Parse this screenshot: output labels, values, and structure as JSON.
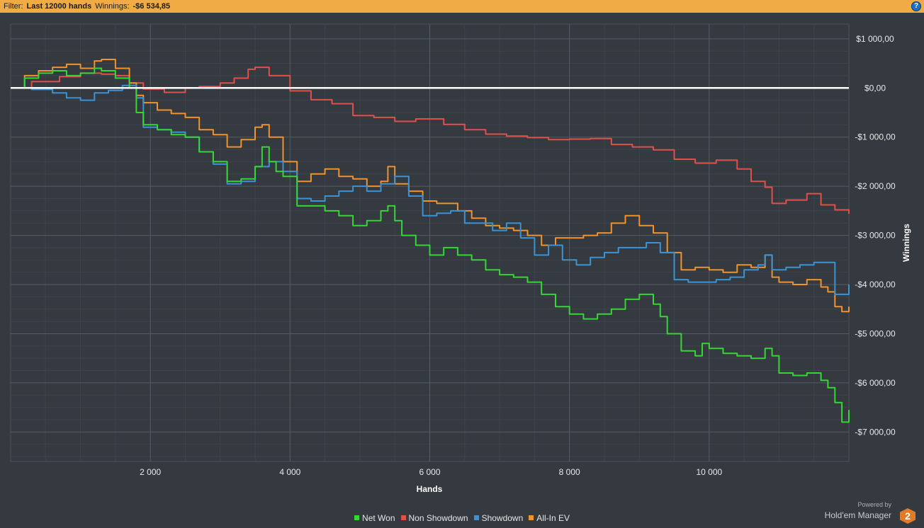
{
  "filter_bar": {
    "prefix": "Filter:",
    "filter_value": "Last 12000 hands",
    "winnings_label": "Winnings:",
    "winnings_value": "-$6 534,85",
    "help_glyph": "?"
  },
  "colors": {
    "background": "#343a40",
    "filter_bar": "#f0ab45",
    "zero_line": "#ffffff",
    "net_won": "#35d635",
    "non_showdown": "#e0504a",
    "showdown": "#3b93d6",
    "all_in_ev": "#f0922e"
  },
  "chart_data": {
    "type": "line",
    "xlabel": "Hands",
    "ylabel": "Winnings",
    "xlim": [
      0,
      12000
    ],
    "ylim": [
      -7600,
      1300
    ],
    "x_ticks": [
      2000,
      4000,
      6000,
      8000,
      10000
    ],
    "x_tick_labels": [
      "2 000",
      "4 000",
      "6 000",
      "8 000",
      "10 000"
    ],
    "y_ticks": [
      1000,
      0,
      -1000,
      -2000,
      -3000,
      -4000,
      -5000,
      -6000,
      -7000
    ],
    "y_tick_labels": [
      "$1 000,00",
      "$0,00",
      "-$1 000,00",
      "-$2 000,00",
      "-$3 000,00",
      "-$4 000,00",
      "-$5 000,00",
      "-$6 000,00",
      "-$7 000,00"
    ],
    "grid": true,
    "legend_position": "bottom-center",
    "series": [
      {
        "name": "Non Showdown",
        "color": "#e0504a",
        "x": [
          0,
          300,
          700,
          1000,
          1300,
          1500,
          1700,
          1900,
          2200,
          2500,
          2700,
          3000,
          3200,
          3400,
          3500,
          3700,
          4000,
          4300,
          4600,
          4900,
          5200,
          5500,
          5800,
          6200,
          6500,
          6800,
          7100,
          7400,
          7700,
          8000,
          8300,
          8600,
          8900,
          9200,
          9500,
          9800,
          10100,
          10400,
          10600,
          10800,
          10900,
          11100,
          11400,
          11600,
          11800,
          12000
        ],
        "values": [
          0,
          130,
          230,
          300,
          280,
          250,
          100,
          -20,
          -90,
          0,
          30,
          100,
          200,
          380,
          420,
          250,
          -60,
          -240,
          -320,
          -560,
          -600,
          -680,
          -630,
          -740,
          -850,
          -940,
          -980,
          -1010,
          -1050,
          -1040,
          -1030,
          -1150,
          -1200,
          -1260,
          -1450,
          -1530,
          -1470,
          -1650,
          -1900,
          -2020,
          -2350,
          -2280,
          -2150,
          -2380,
          -2480,
          -2560
        ]
      },
      {
        "name": "All-In EV",
        "color": "#f0922e",
        "x": [
          0,
          200,
          400,
          600,
          800,
          1000,
          1200,
          1300,
          1500,
          1700,
          1800,
          1900,
          2100,
          2300,
          2500,
          2700,
          2900,
          3100,
          3300,
          3500,
          3600,
          3700,
          3900,
          4100,
          4300,
          4500,
          4700,
          4900,
          5100,
          5300,
          5400,
          5500,
          5700,
          5900,
          6100,
          6400,
          6600,
          6800,
          7000,
          7200,
          7400,
          7600,
          7800,
          8000,
          8200,
          8400,
          8600,
          8800,
          9000,
          9200,
          9400,
          9600,
          9800,
          10000,
          10200,
          10400,
          10600,
          10800,
          10900,
          11000,
          11200,
          11400,
          11600,
          11700,
          11800,
          11900,
          12000
        ],
        "values": [
          0,
          250,
          350,
          420,
          480,
          400,
          550,
          580,
          400,
          100,
          -150,
          -300,
          -450,
          -520,
          -600,
          -850,
          -950,
          -1200,
          -1050,
          -800,
          -750,
          -1000,
          -1500,
          -1900,
          -1750,
          -1650,
          -1800,
          -1850,
          -2000,
          -1900,
          -1600,
          -1950,
          -2100,
          -2300,
          -2350,
          -2500,
          -2650,
          -2800,
          -2850,
          -2900,
          -3000,
          -3200,
          -3050,
          -3050,
          -3000,
          -2950,
          -2750,
          -2600,
          -2800,
          -2950,
          -3350,
          -3700,
          -3650,
          -3700,
          -3750,
          -3600,
          -3650,
          -3400,
          -3850,
          -3950,
          -4000,
          -3900,
          -4050,
          -4150,
          -4450,
          -4550,
          -4450
        ]
      },
      {
        "name": "Showdown",
        "color": "#3b93d6",
        "x": [
          0,
          300,
          600,
          800,
          1000,
          1200,
          1400,
          1600,
          1800,
          1900,
          2100,
          2300,
          2500,
          2700,
          2900,
          3100,
          3300,
          3500,
          3700,
          3900,
          4100,
          4300,
          4500,
          4700,
          4900,
          5100,
          5300,
          5500,
          5700,
          5900,
          6100,
          6300,
          6500,
          6700,
          6900,
          7100,
          7300,
          7500,
          7700,
          7900,
          8100,
          8300,
          8500,
          8700,
          8900,
          9100,
          9300,
          9500,
          9700,
          9900,
          10100,
          10300,
          10500,
          10700,
          10800,
          10900,
          11100,
          11300,
          11500,
          11700,
          11800,
          12000
        ],
        "values": [
          0,
          -30,
          -100,
          -200,
          -250,
          -100,
          -50,
          50,
          -200,
          -800,
          -850,
          -900,
          -1000,
          -1300,
          -1550,
          -1950,
          -1900,
          -1600,
          -1500,
          -1700,
          -2250,
          -2300,
          -2200,
          -2100,
          -2000,
          -2100,
          -1950,
          -1800,
          -2200,
          -2600,
          -2550,
          -2500,
          -2750,
          -2750,
          -2900,
          -2750,
          -3050,
          -3400,
          -3200,
          -3500,
          -3600,
          -3450,
          -3350,
          -3250,
          -3250,
          -3150,
          -3350,
          -3900,
          -3950,
          -3950,
          -3900,
          -3850,
          -3700,
          -3600,
          -3400,
          -3700,
          -3650,
          -3600,
          -3550,
          -3550,
          -4200,
          -4000
        ]
      },
      {
        "name": "Net Won",
        "color": "#35d635",
        "x": [
          0,
          200,
          400,
          600,
          800,
          1000,
          1200,
          1300,
          1500,
          1700,
          1800,
          1900,
          2100,
          2300,
          2500,
          2700,
          2900,
          3100,
          3300,
          3500,
          3600,
          3700,
          3800,
          3900,
          4100,
          4300,
          4500,
          4700,
          4900,
          5100,
          5300,
          5400,
          5500,
          5600,
          5800,
          6000,
          6200,
          6400,
          6600,
          6800,
          7000,
          7200,
          7400,
          7600,
          7800,
          8000,
          8200,
          8400,
          8600,
          8800,
          9000,
          9200,
          9300,
          9400,
          9600,
          9800,
          9900,
          10000,
          10200,
          10400,
          10600,
          10800,
          10900,
          11000,
          11200,
          11400,
          11600,
          11700,
          11800,
          11900,
          12000
        ],
        "values": [
          0,
          200,
          300,
          350,
          250,
          300,
          400,
          350,
          200,
          0,
          -500,
          -750,
          -850,
          -950,
          -1000,
          -1300,
          -1500,
          -1900,
          -1850,
          -1600,
          -1200,
          -1500,
          -1700,
          -1800,
          -2400,
          -2400,
          -2500,
          -2600,
          -2800,
          -2700,
          -2500,
          -2400,
          -2700,
          -3000,
          -3200,
          -3400,
          -3250,
          -3400,
          -3500,
          -3700,
          -3800,
          -3850,
          -3950,
          -4200,
          -4450,
          -4600,
          -4700,
          -4600,
          -4500,
          -4300,
          -4200,
          -4400,
          -4650,
          -5000,
          -5350,
          -5450,
          -5200,
          -5300,
          -5400,
          -5450,
          -5500,
          -5300,
          -5450,
          -5800,
          -5850,
          -5800,
          -5950,
          -6100,
          -6400,
          -6800,
          -6550
        ]
      }
    ]
  },
  "legend": {
    "items": [
      {
        "label": "Net Won",
        "color": "#35d635"
      },
      {
        "label": "Non Showdown",
        "color": "#e0504a"
      },
      {
        "label": "Showdown",
        "color": "#3b93d6"
      },
      {
        "label": "All-In EV",
        "color": "#f0922e"
      }
    ]
  },
  "branding": {
    "powered_by": "Powered by",
    "product": "Hold'em Manager",
    "logo_glyph": "2"
  }
}
